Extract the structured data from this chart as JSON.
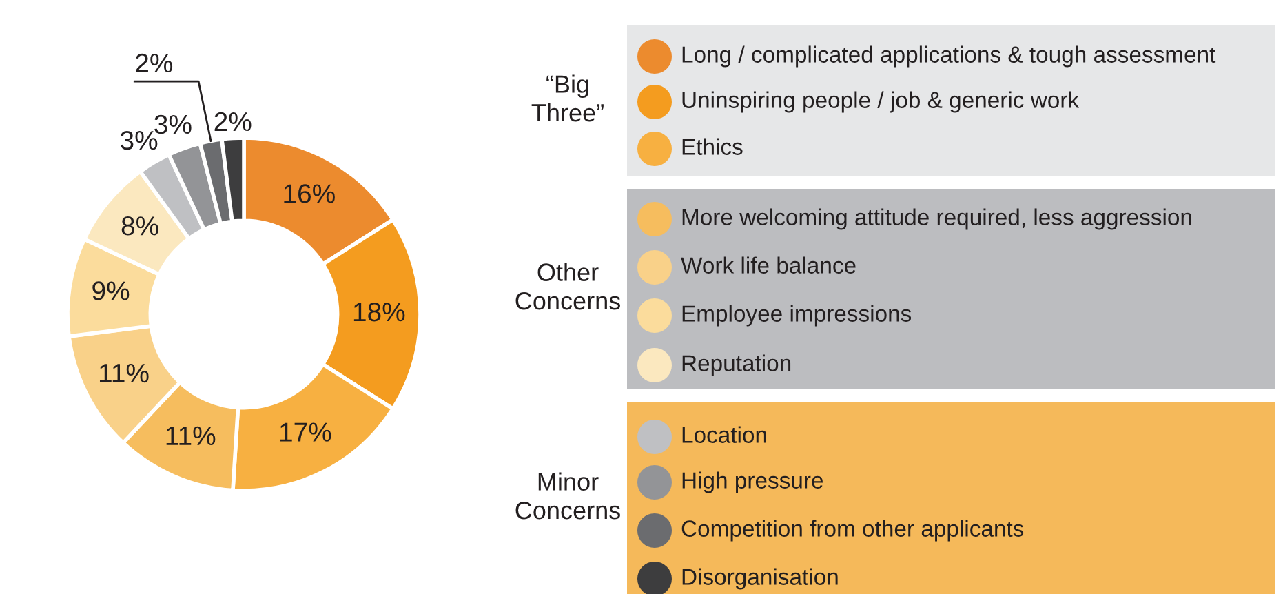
{
  "chart_data": {
    "type": "donut",
    "categories": [
      "Long / complicated applications & tough assessment",
      "Uninspiring people / job & generic work",
      "Ethics",
      "More welcoming attitude required, less aggression",
      "Work life balance",
      "Employee impressions",
      "Reputation",
      "Location",
      "High pressure",
      "Competition from other applicants",
      "Disorganisation"
    ],
    "values": [
      16,
      18,
      17,
      11,
      11,
      9,
      8,
      3,
      3,
      2,
      2
    ],
    "colors": [
      "#ec8b2e",
      "#f49c1f",
      "#f7b041",
      "#f6bd5e",
      "#f9d189",
      "#fbdc9c",
      "#fbe8bf",
      "#bfc0c3",
      "#939497",
      "#6b6c6f",
      "#3d3d3e"
    ],
    "annotations": [
      "“Big Three”",
      "Other Concerns",
      "Minor Concerns"
    ],
    "value_labels": [
      "16%",
      "18%",
      "17%",
      "11%",
      "11%",
      "9%",
      "8%",
      "3%",
      "3%",
      "2%",
      "2%"
    ],
    "legend": "right"
  }
}
